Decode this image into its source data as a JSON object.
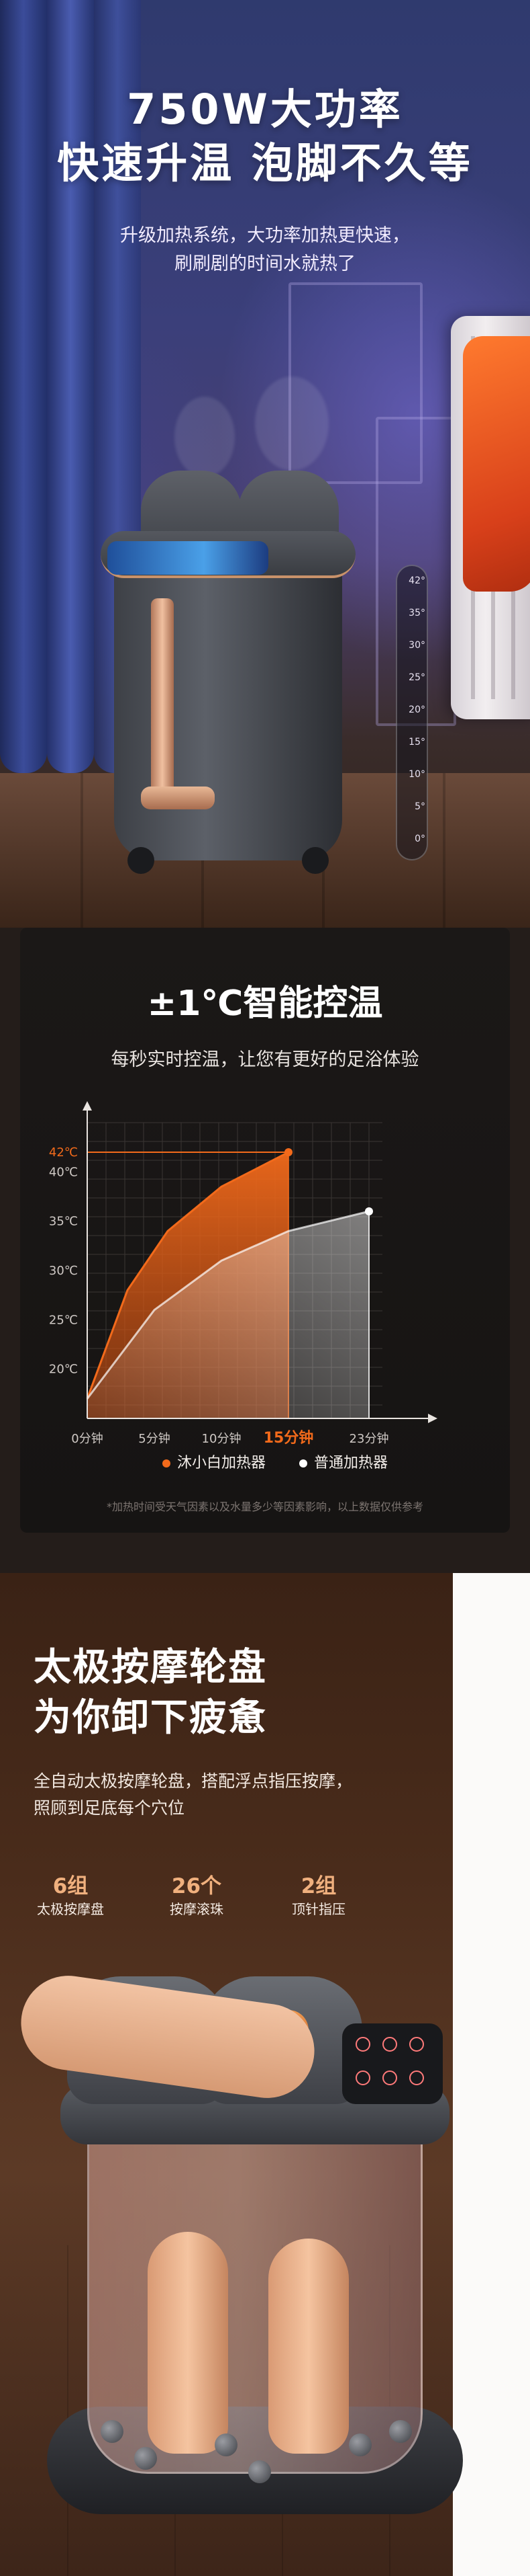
{
  "hero": {
    "title_line1": "750W大功率",
    "title_line2": "快速升温 泡脚不久等",
    "subtitle_line1": "升级加热系统，大功率加热更快速，",
    "subtitle_line2": "刷刷剧的时间水就热了",
    "thermometer_ticks": [
      "42°",
      "35°",
      "30°",
      "25°",
      "20°",
      "15°",
      "10°",
      "5°",
      "0°"
    ]
  },
  "temp_control": {
    "title": "±1℃智能控温",
    "subtitle": "每秒实时控温，让您有更好的足浴体验",
    "legend": [
      {
        "name": "沐小白加热器",
        "color": "#f26a1b"
      },
      {
        "name": "普通加热器",
        "color": "#ffffff"
      }
    ],
    "footnote": "*加热时间受天气因素以及水量多少等因素影响，以上数据仅供参考"
  },
  "chart_data": {
    "type": "area",
    "x_tick_labels": [
      "0分钟",
      "5分钟",
      "10分钟",
      "15分钟",
      "23分钟"
    ],
    "highlight_tick": "15分钟",
    "y_tick_labels": [
      "42℃",
      "40℃",
      "35℃",
      "30℃",
      "25℃",
      "20℃"
    ],
    "x_values": [
      0,
      5,
      10,
      15,
      23
    ],
    "ylim": [
      15,
      45
    ],
    "series": [
      {
        "name": "沐小白加热器",
        "color": "#f26a1b",
        "points": [
          [
            0,
            17
          ],
          [
            3,
            28
          ],
          [
            6,
            34
          ],
          [
            10,
            38.5
          ],
          [
            15,
            42
          ]
        ]
      },
      {
        "name": "普通加热器",
        "color": "#ffffff",
        "points": [
          [
            0,
            17
          ],
          [
            5,
            26
          ],
          [
            10,
            31
          ],
          [
            15,
            34
          ],
          [
            23,
            36
          ]
        ]
      }
    ]
  },
  "massage": {
    "title_line1": "太极按摩轮盘",
    "title_line2": "为你卸下疲惫",
    "text_line1": "全自动太极按摩轮盘，搭配浮点指压按摩，",
    "text_line2": "照顾到足底每个穴位",
    "stats": [
      {
        "value": "6组",
        "label": "太极按摩盘"
      },
      {
        "value": "26个",
        "label": "按摩滚珠"
      },
      {
        "value": "2组",
        "label": "顶针指压"
      }
    ]
  }
}
